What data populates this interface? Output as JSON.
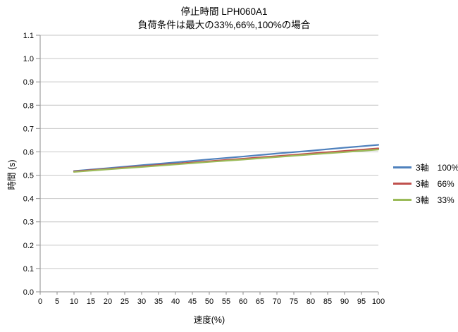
{
  "chart_data": {
    "type": "line",
    "title": "停止時間 LPH060A1",
    "subtitle": "負荷条件は最大の33%,66%,100%の場合",
    "xlabel": "速度(%)",
    "ylabel": "時間 (s)",
    "xlim": [
      0,
      100
    ],
    "ylim": [
      0.0,
      1.1
    ],
    "xticks": [
      0,
      5,
      10,
      15,
      20,
      25,
      30,
      35,
      40,
      45,
      50,
      55,
      60,
      65,
      70,
      75,
      80,
      85,
      90,
      95,
      100
    ],
    "yticks": [
      "0.0",
      "0.1",
      "0.2",
      "0.3",
      "0.4",
      "0.5",
      "0.6",
      "0.7",
      "0.8",
      "0.9",
      "1.0",
      "1.1"
    ],
    "grid": true,
    "legend_position": "right",
    "x": [
      10,
      20,
      30,
      40,
      50,
      60,
      70,
      80,
      90,
      100
    ],
    "series": [
      {
        "name": "3軸　100%",
        "color": "#4f81bd",
        "values": [
          0.518,
          0.53,
          0.543,
          0.555,
          0.568,
          0.58,
          0.593,
          0.605,
          0.618,
          0.63
        ]
      },
      {
        "name": "3軸　66%",
        "color": "#c0504d",
        "values": [
          0.516,
          0.527,
          0.538,
          0.549,
          0.56,
          0.571,
          0.582,
          0.593,
          0.604,
          0.615
        ]
      },
      {
        "name": "3軸　33%",
        "color": "#9bbb59",
        "values": [
          0.514,
          0.525,
          0.535,
          0.546,
          0.557,
          0.567,
          0.578,
          0.589,
          0.599,
          0.61
        ]
      }
    ],
    "colors": {
      "gridline": "#c6c6c6",
      "axis": "#8e8e8e",
      "tick": "#8e8e8e",
      "text": "#000000",
      "background": "#ffffff"
    }
  }
}
